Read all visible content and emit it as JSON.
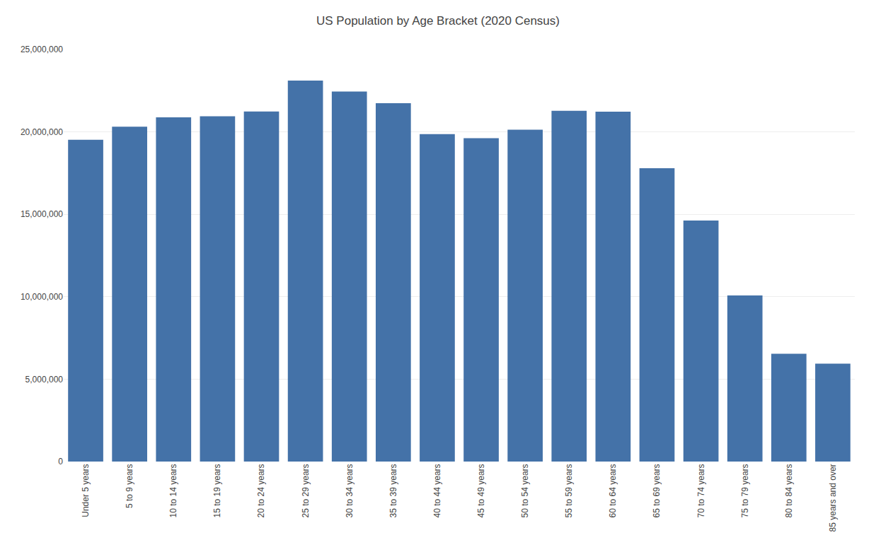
{
  "chart_data": {
    "type": "bar",
    "title": "US Population by Age Bracket (2020 Census)",
    "categories": [
      "Under 5 years",
      "5 to 9 years",
      "10 to 14 years",
      "15 to 19 years",
      "20 to 24 years",
      "25 to 29 years",
      "30 to 34 years",
      "35 to 39 years",
      "40 to 44 years",
      "45 to 49 years",
      "50 to 54 years",
      "55 to 59 years",
      "60 to 64 years",
      "65 to 69 years",
      "70 to 74 years",
      "75 to 79 years",
      "80 to 84 years",
      "85 years and over"
    ],
    "values": [
      19522572,
      20312589,
      20888370,
      20942751,
      21239214,
      23114251,
      22443776,
      21744926,
      19868782,
      19614756,
      20128585,
      21275324,
      21224038,
      17798781,
      14620495,
      10080768,
      6538591,
      5936923
    ],
    "color": "#4472a8",
    "ylim": [
      0,
      25000000
    ],
    "yticks": [
      0,
      {
        "value": 5000000,
        "label": "5,000,000"
      },
      {
        "value": 10000000,
        "label": "10,000,000"
      },
      {
        "value": 15000000,
        "label": "15,000,000"
      },
      {
        "value": 20000000,
        "label": "20,000,000"
      },
      {
        "value": 25000000,
        "label": "25,000,000"
      }
    ],
    "grid": true
  }
}
